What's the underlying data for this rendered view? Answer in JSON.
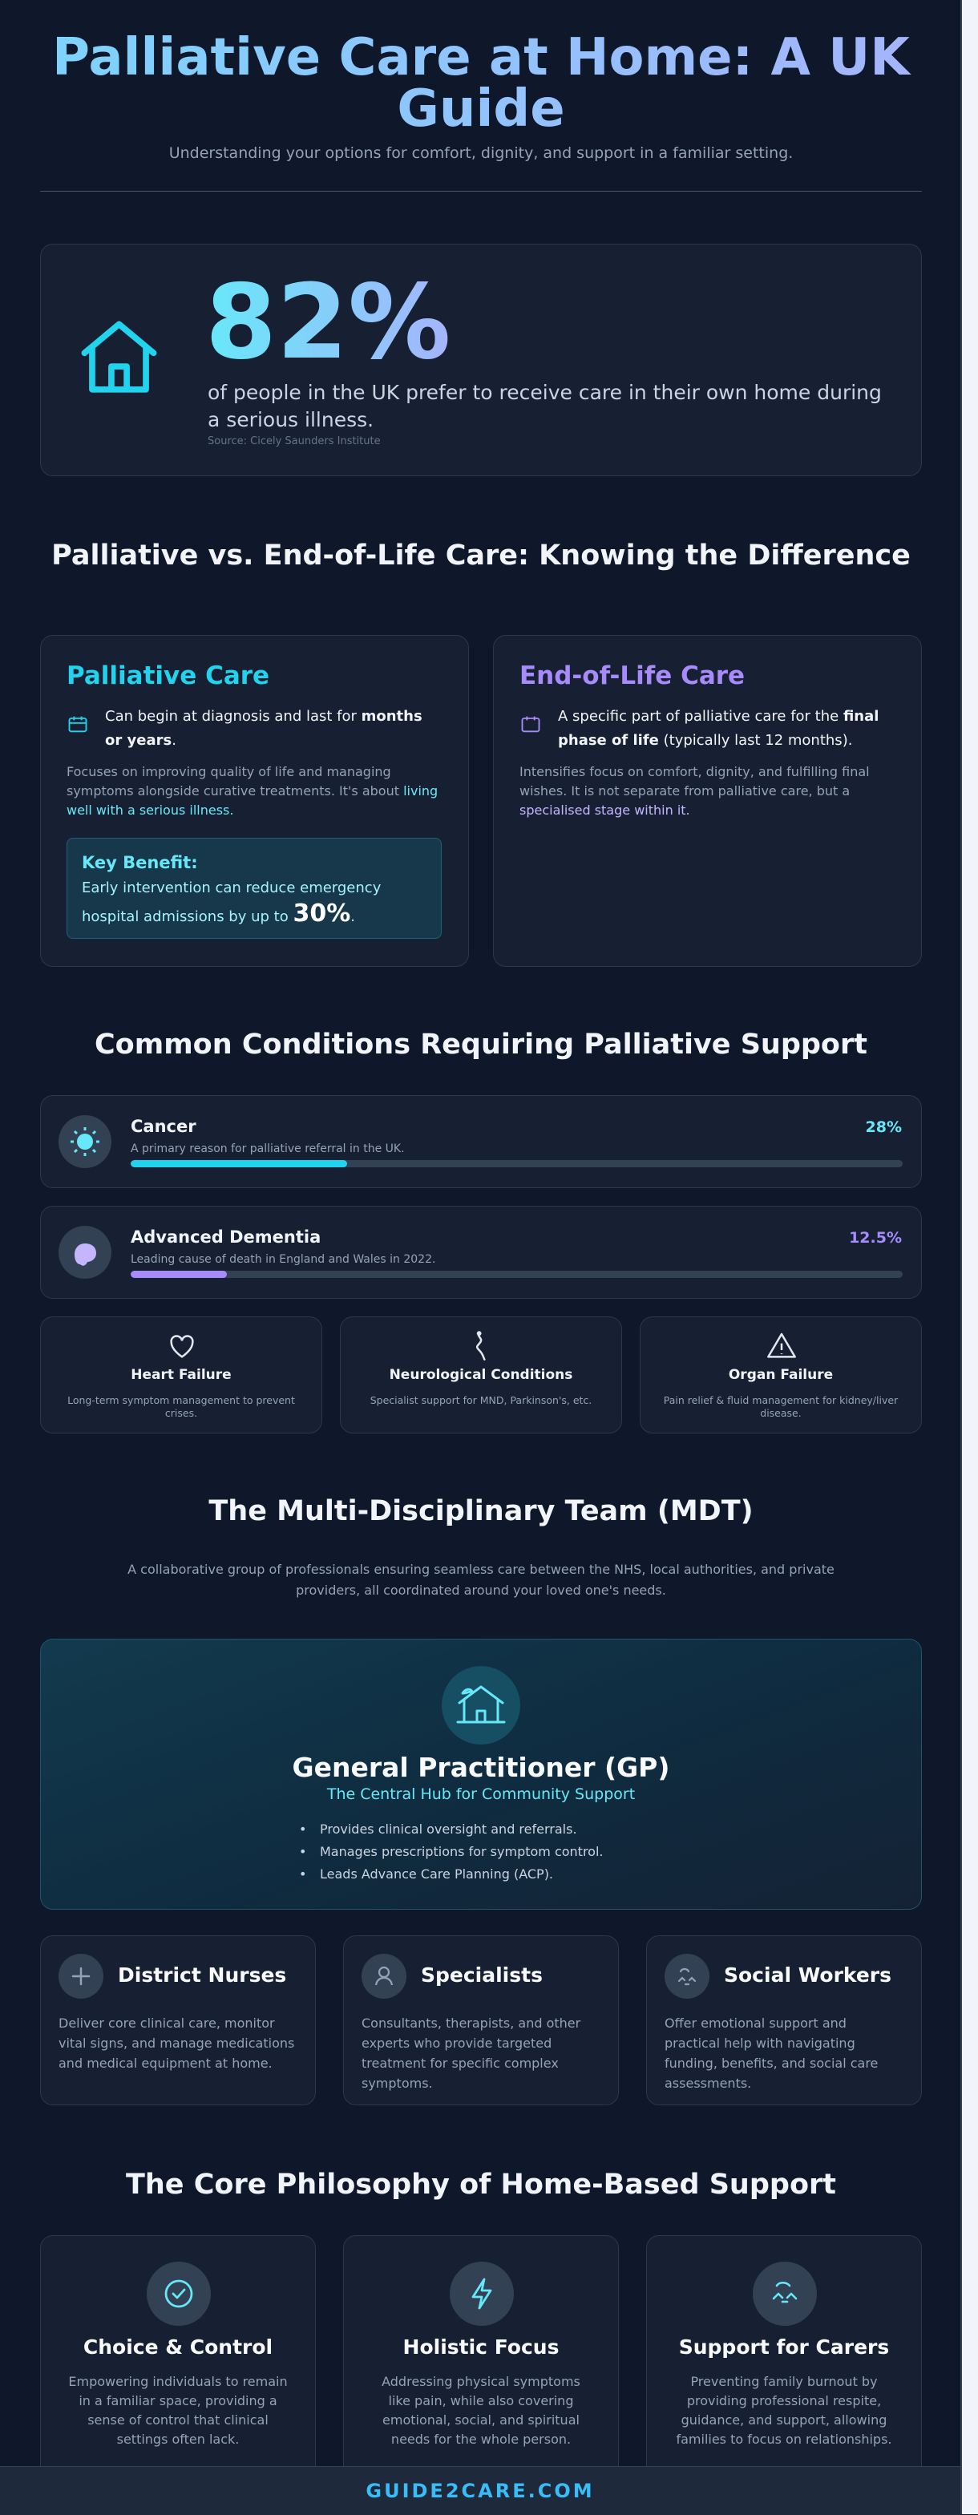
{
  "header": {
    "title": "Palliative Care at Home: A UK Guide",
    "subtitle": "Understanding your options for comfort, dignity, and support in a familiar setting."
  },
  "stat": {
    "value": "82%",
    "text": "of people in the UK prefer to receive care in their own home during a serious illness.",
    "source": "Source: Cicely Saunders Institute",
    "icon": "house-icon"
  },
  "comparison": {
    "heading": "Palliative vs. End-of-Life Care: Knowing the Difference",
    "palliative": {
      "title": "Palliative Care",
      "lead_plain": "Can begin at diagnosis and last for ",
      "lead_bold": "months or years",
      "lead_end": ".",
      "desc_plain": "Focuses on improving quality of life and managing symptoms alongside curative treatments. It's about ",
      "desc_highlight": "living well with a serious illness.",
      "benefit_title": "Key Benefit:",
      "benefit_text": "Early intervention can reduce emergency hospital admissions by up to ",
      "benefit_value": "30%",
      "benefit_end": ".",
      "color": "#22d3ee"
    },
    "end_of_life": {
      "title": "End-of-Life Care",
      "lead_plain": "A specific part of palliative care for the ",
      "lead_bold": "final phase of life",
      "lead_end": " (typically last 12 months).",
      "desc_plain": "Intensifies focus on comfort, dignity, and fulfilling final wishes. It is not separate from palliative care, but a ",
      "desc_highlight": "specialised stage within it.",
      "color": "#a78bfa"
    }
  },
  "conditions": {
    "heading": "Common Conditions Requiring Palliative Support",
    "bars": [
      {
        "name": "Cancer",
        "desc": "A primary reason for palliative referral in the UK.",
        "percent_label": "28%",
        "value": 28,
        "color": "#22d3ee",
        "icon": "virus-icon"
      },
      {
        "name": "Advanced Dementia",
        "desc": "Leading cause of death in England and Wales in 2022.",
        "percent_label": "12.5%",
        "value": 12.5,
        "color": "#a78bfa",
        "icon": "brain-icon"
      }
    ],
    "cards": [
      {
        "name": "Heart Failure",
        "desc": "Long-term symptom management to prevent crises.",
        "icon": "heart-icon"
      },
      {
        "name": "Neurological Conditions",
        "desc": "Specialist support for MND, Parkinson's, etc.",
        "icon": "nerve-icon"
      },
      {
        "name": "Organ Failure",
        "desc": "Pain relief & fluid management for kidney/liver disease.",
        "icon": "warning-icon"
      }
    ]
  },
  "mdt": {
    "heading": "The Multi-Disciplinary Team (MDT)",
    "intro": "A collaborative group of professionals ensuring seamless care between the NHS, local authorities, and private providers, all coordinated around your loved one's needs.",
    "gp": {
      "title": "General Practitioner (GP)",
      "subtitle": "The Central Hub for Community Support",
      "items": [
        "Provides clinical oversight and referrals.",
        "Manages prescriptions for symptom control.",
        "Leads Advance Care Planning (ACP)."
      ],
      "icon": "house-care-icon"
    },
    "roles": [
      {
        "title": "District Nurses",
        "desc": "Deliver core clinical care, monitor vital signs, and manage medications and medical equipment at home.",
        "icon": "plus-icon"
      },
      {
        "title": "Specialists",
        "desc": "Consultants, therapists, and other experts who provide targeted treatment for specific complex symptoms.",
        "icon": "user-icon"
      },
      {
        "title": "Social Workers",
        "desc": "Offer emotional support and practical help with navigating funding, benefits, and social care assessments.",
        "icon": "hands-icon"
      }
    ]
  },
  "philosophy": {
    "heading": "The Core Philosophy of Home-Based Support",
    "cards": [
      {
        "title": "Choice & Control",
        "desc": "Empowering individuals to remain in a familiar space, providing a sense of control that clinical settings often lack.",
        "icon": "check-circle-icon"
      },
      {
        "title": "Holistic Focus",
        "desc": "Addressing physical symptoms like pain, while also covering emotional, social, and spiritual needs for the whole person.",
        "icon": "lightning-icon"
      },
      {
        "title": "Support for Carers",
        "desc": "Preventing family burnout by providing professional respite, guidance, and support, allowing families to focus on relationships.",
        "icon": "helping-hands-icon"
      }
    ]
  },
  "footer": {
    "brand": "GUIDE2CARE.COM"
  }
}
